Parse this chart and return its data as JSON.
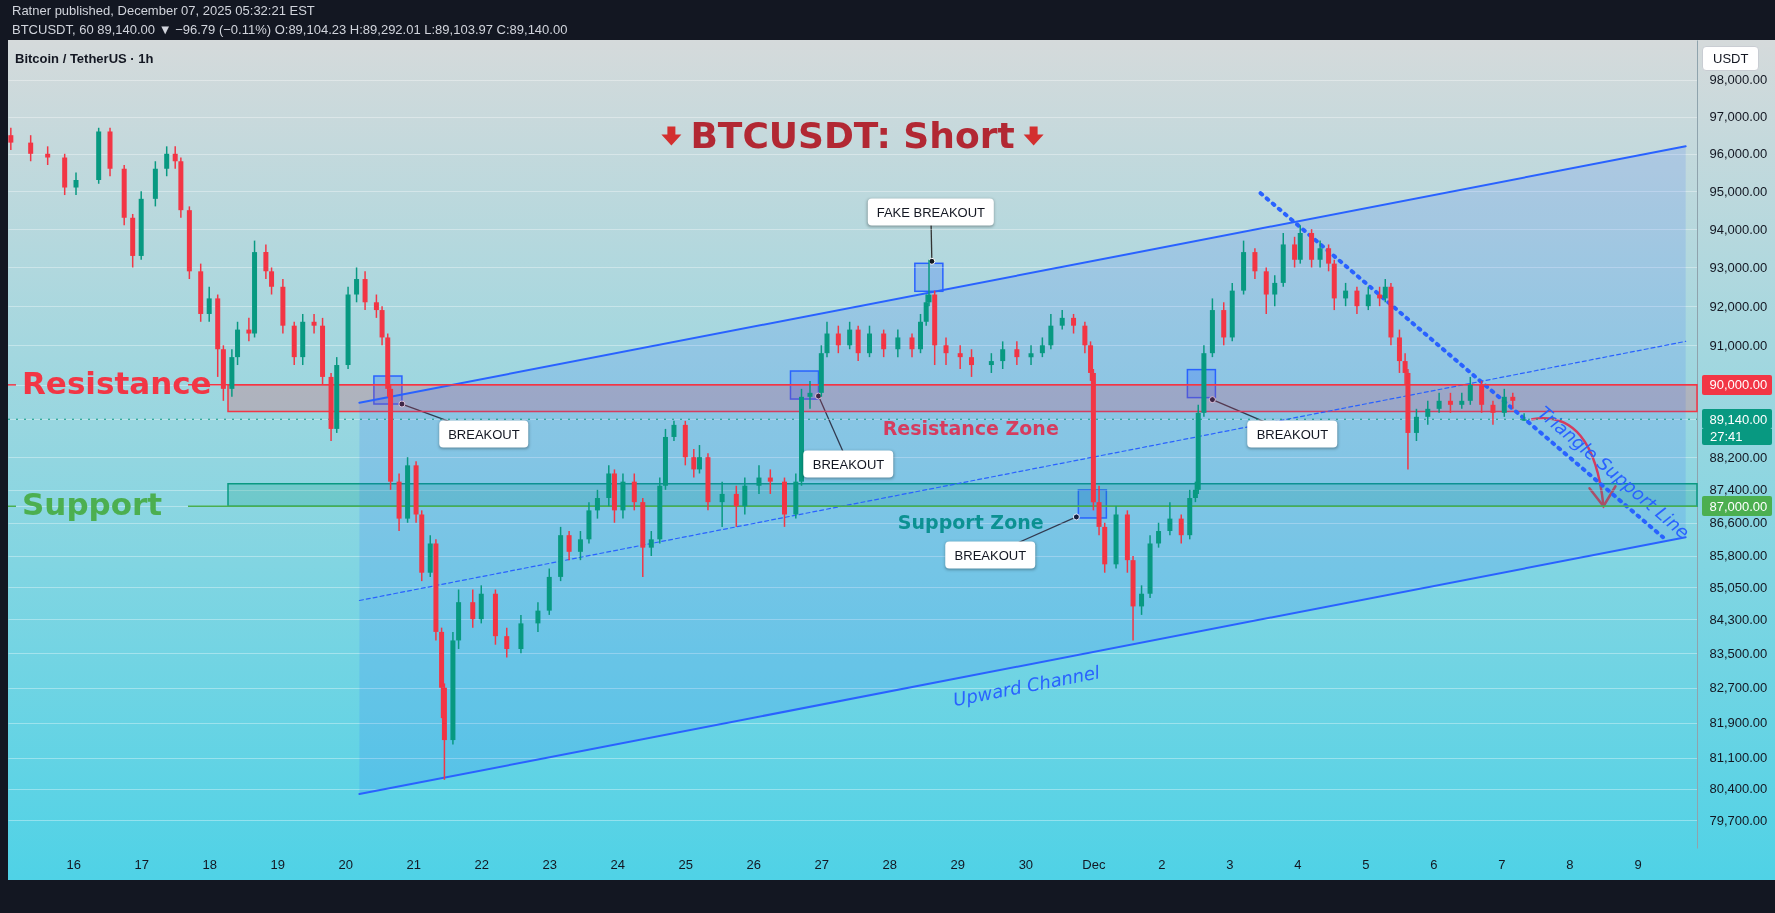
{
  "chart_data": {
    "type": "candlestick",
    "title": "BTCUSDT: Short",
    "subtitle": "Bitcoin / TetherUS · 1h",
    "ylabel": "USDT",
    "annotations": [
      "Ratner published, December 07, 2025 05:32:21 EST",
      "BTCUSDT, 60 89,140.00 ▼ −96.79 (−0.11%) O:89,104.23 H:89,292.01 L:89,103.97 C:89,140.00",
      {
        "text": "BREAKOUT",
        "x": "2025-11-20T20:00",
        "y": 89520
      },
      {
        "text": "BREAKOUT",
        "x": "2025-11-26T23:00",
        "y": 89720
      },
      {
        "text": "FAKE BREAKOUT",
        "x": "2025-11-28T15:00",
        "y": 93160
      },
      {
        "text": "BREAKOUT",
        "x": "2025-11-30T18:00",
        "y": 86740
      },
      {
        "text": "BREAKOUT",
        "x": "2025-12-02T18:00",
        "y": 89630
      },
      {
        "text": "27:41",
        "x": "2025-12-09T21:00",
        "y": 89140
      }
    ],
    "xlim": [
      "2025-11-15T01:00",
      "2025-12-09T21:00"
    ],
    "xticks": [
      {
        "value": "2025-11-16",
        "label": "16"
      },
      {
        "value": "2025-11-17",
        "label": "17"
      },
      {
        "value": "2025-11-18",
        "label": "18"
      },
      {
        "value": "2025-11-19",
        "label": "19"
      },
      {
        "value": "2025-11-20",
        "label": "20"
      },
      {
        "value": "2025-11-21",
        "label": "21"
      },
      {
        "value": "2025-11-22",
        "label": "22"
      },
      {
        "value": "2025-11-23",
        "label": "23"
      },
      {
        "value": "2025-11-24",
        "label": "24"
      },
      {
        "value": "2025-11-25",
        "label": "25"
      },
      {
        "value": "2025-11-26",
        "label": "26"
      },
      {
        "value": "2025-11-27",
        "label": "27"
      },
      {
        "value": "2025-11-28",
        "label": "28"
      },
      {
        "value": "2025-11-29",
        "label": "29"
      },
      {
        "value": "2025-11-30",
        "label": "30"
      },
      {
        "value": "2025-12-01",
        "label": "Dec"
      },
      {
        "value": "2025-12-02",
        "label": "2"
      },
      {
        "value": "2025-12-03",
        "label": "3"
      },
      {
        "value": "2025-12-04",
        "label": "4"
      },
      {
        "value": "2025-12-05",
        "label": "5"
      },
      {
        "value": "2025-12-06",
        "label": "6"
      },
      {
        "value": "2025-12-07",
        "label": "7"
      },
      {
        "value": "2025-12-08",
        "label": "8"
      },
      {
        "value": "2025-12-09",
        "label": "9"
      }
    ],
    "ylim": [
      79080,
      99100
    ],
    "log": true,
    "yticks": [
      {
        "value": 98000,
        "label": "98,000.00"
      },
      {
        "value": 97000,
        "label": "97,000.00"
      },
      {
        "value": 96000,
        "label": "96,000.00"
      },
      {
        "value": 95000,
        "label": "95,000.00"
      },
      {
        "value": 94000,
        "label": "94,000.00"
      },
      {
        "value": 93000,
        "label": "93,000.00"
      },
      {
        "value": 92000,
        "label": "92,000.00"
      },
      {
        "value": 91000,
        "label": "91,000.00"
      },
      {
        "value": 90000,
        "label": "90,000.00"
      },
      {
        "value": 89140,
        "label": "89,140.00"
      },
      {
        "value": 88200,
        "label": "88,200.00"
      },
      {
        "value": 87400,
        "label": "87,400.00"
      },
      {
        "value": 87000,
        "label": "87,000.00"
      },
      {
        "value": 86600,
        "label": "86,600.00"
      },
      {
        "value": 85800,
        "label": "85,800.00"
      },
      {
        "value": 85050,
        "label": "85,050.00"
      },
      {
        "value": 84300,
        "label": "84,300.00"
      },
      {
        "value": 83500,
        "label": "83,500.00"
      },
      {
        "value": 82700,
        "label": "82,700.00"
      },
      {
        "value": 81900,
        "label": "81,900.00"
      },
      {
        "value": 81100,
        "label": "81,100.00"
      },
      {
        "value": 80400,
        "label": "80,400.00"
      },
      {
        "value": 79700,
        "label": "79,700.00"
      }
    ],
    "grid": "y",
    "ref_lines": [
      {
        "axis": "y",
        "value": 90000,
        "label": "Resistance",
        "color": "#f23645"
      },
      {
        "axis": "y",
        "value": 87000,
        "label": "Support",
        "color": "#4caf50"
      },
      {
        "axis": "y",
        "value": 89140,
        "color": "#089981",
        "line_style": "dotted"
      }
    ],
    "bands": [
      {
        "axis": "y",
        "from": 89330,
        "to": 90000,
        "label": "Resistance Zone",
        "color": "#f23645"
      },
      {
        "axis": "y",
        "from": 87000,
        "to": 87550,
        "label": "Support Zone",
        "color": "#089981"
      }
    ],
    "series": [
      {
        "type": "line",
        "x": [
          "2025-11-20T05:00",
          "2025-12-09T17:00"
        ],
        "values": [
          84740,
          91100
        ],
        "lower": [
          80280,
          86250
        ],
        "upper": [
          89550,
          96200
        ],
        "color": "#2962ff",
        "line_style": "dashed"
      },
      {
        "type": "line",
        "name": "Upward Channel",
        "x": [
          "2025-11-20T05:00",
          "2025-12-09T17:00"
        ],
        "values": [
          80280,
          86250
        ],
        "color": "#2962ff"
      },
      {
        "type": "line",
        "x": [
          "2025-11-20T05:00",
          "2025-12-09T17:00"
        ],
        "values": [
          89550,
          96200
        ],
        "color": "#2962ff"
      },
      {
        "type": "line",
        "name": "Triangle Support Line",
        "x": [
          "2025-12-03T11:00",
          "2025-12-09T09:00"
        ],
        "values": [
          94950,
          86250
        ],
        "color": "#2962ff",
        "line_style": "dotted"
      },
      {
        "type": "candlestick",
        "x": [
          "2025-11-15T02:00",
          "2025-11-15T09:00",
          "2025-11-15T15:00",
          "2025-11-15T21:00",
          "2025-11-16T01:00",
          "2025-11-16T09:00",
          "2025-11-16T13:00",
          "2025-11-16T18:00",
          "2025-11-16T21:00",
          "2025-11-17T00:00",
          "2025-11-17T05:00",
          "2025-11-17T09:00",
          "2025-11-17T12:00",
          "2025-11-17T14:00",
          "2025-11-17T17:00",
          "2025-11-17T21:00",
          "2025-11-18T00:00",
          "2025-11-18T03:00",
          "2025-11-18T05:00",
          "2025-11-18T08:00",
          "2025-11-18T10:00",
          "2025-11-18T14:00",
          "2025-11-18T16:00",
          "2025-11-18T20:00",
          "2025-11-18T22:00",
          "2025-11-19T02:00",
          "2025-11-19T06:00",
          "2025-11-19T09:00",
          "2025-11-19T13:00",
          "2025-11-19T16:00",
          "2025-11-19T19:00",
          "2025-11-19T21:00",
          "2025-11-20T01:00",
          "2025-11-20T04:00",
          "2025-11-20T07:00",
          "2025-11-20T11:00",
          "2025-11-20T13:00",
          "2025-11-20T15:00",
          "2025-11-20T16:00",
          "2025-11-20T19:00",
          "2025-11-20T22:00",
          "2025-11-21T01:00",
          "2025-11-21T03:00",
          "2025-11-21T06:00",
          "2025-11-21T08:00",
          "2025-11-21T10:00",
          "2025-11-21T11:00",
          "2025-11-21T14:00",
          "2025-11-21T16:00",
          "2025-11-21T21:00",
          "2025-11-22T00:00",
          "2025-11-22T05:00",
          "2025-11-22T09:00",
          "2025-11-22T14:00",
          "2025-11-22T20:00",
          "2025-11-23T00:00",
          "2025-11-23T04:00",
          "2025-11-23T07:00",
          "2025-11-23T11:00",
          "2025-11-23T14:00",
          "2025-11-23T17:00",
          "2025-11-23T21:00",
          "2025-11-23T23:00",
          "2025-11-24T02:00",
          "2025-11-24T06:00",
          "2025-11-24T09:00",
          "2025-11-24T12:00",
          "2025-11-24T15:00",
          "2025-11-24T17:00",
          "2025-11-24T20:00",
          "2025-11-25T00:00",
          "2025-11-25T03:00",
          "2025-11-25T05:00",
          "2025-11-25T08:00",
          "2025-11-25T13:00",
          "2025-11-25T18:00",
          "2025-11-25T21:00",
          "2025-11-26T02:00",
          "2025-11-26T06:00",
          "2025-11-26T11:00",
          "2025-11-26T15:00",
          "2025-11-26T17:00",
          "2025-11-26T20:00",
          "2025-11-27T00:00",
          "2025-11-27T02:00",
          "2025-11-27T06:00",
          "2025-11-27T10:00",
          "2025-11-27T13:00",
          "2025-11-27T17:00",
          "2025-11-27T22:00",
          "2025-11-28T03:00",
          "2025-11-28T08:00",
          "2025-11-28T11:00",
          "2025-11-28T13:00",
          "2025-11-28T14:00",
          "2025-11-28T16:00",
          "2025-11-28T20:00",
          "2025-11-29T01:00",
          "2025-11-29T05:00",
          "2025-11-29T12:00",
          "2025-11-29T16:00",
          "2025-11-29T21:00",
          "2025-11-30T02:00",
          "2025-11-30T06:00",
          "2025-11-30T09:00",
          "2025-11-30T13:00",
          "2025-11-30T17:00",
          "2025-11-30T21:00",
          "2025-11-30T23:00",
          "2025-12-01T00:00",
          "2025-12-01T02:00",
          "2025-12-01T04:00",
          "2025-12-01T08:00",
          "2025-12-01T12:00",
          "2025-12-01T14:00",
          "2025-12-01T17:00",
          "2025-12-01T20:00",
          "2025-12-01T23:00",
          "2025-12-02T03:00",
          "2025-12-02T07:00",
          "2025-12-02T10:00",
          "2025-12-02T12:00",
          "2025-12-02T13:00",
          "2025-12-02T15:00",
          "2025-12-02T18:00",
          "2025-12-02T22:00",
          "2025-12-03T01:00",
          "2025-12-03T05:00",
          "2025-12-03T09:00",
          "2025-12-03T13:00",
          "2025-12-03T16:00",
          "2025-12-03T19:00",
          "2025-12-03T23:00",
          "2025-12-04T01:00",
          "2025-12-04T05:00",
          "2025-12-04T08:00",
          "2025-12-04T11:00",
          "2025-12-04T13:00",
          "2025-12-04T17:00",
          "2025-12-04T21:00",
          "2025-12-05T01:00",
          "2025-12-05T05:00",
          "2025-12-05T07:00",
          "2025-12-05T09:00",
          "2025-12-05T12:00",
          "2025-12-05T14:00",
          "2025-12-05T15:00",
          "2025-12-05T18:00",
          "2025-12-05T22:00",
          "2025-12-06T02:00",
          "2025-12-06T06:00",
          "2025-12-06T10:00",
          "2025-12-06T13:00",
          "2025-12-06T17:00",
          "2025-12-06T21:00",
          "2025-12-07T01:00",
          "2025-12-07T04:00",
          "2025-12-07T08:00"
        ],
        "ohlc": [
          [
            96500,
            96700,
            96100,
            96300
          ],
          [
            96300,
            96500,
            95800,
            96000
          ],
          [
            96000,
            96200,
            95700,
            95900
          ],
          [
            95900,
            96000,
            94900,
            95100
          ],
          [
            95100,
            95500,
            94900,
            95300
          ],
          [
            95300,
            96700,
            95200,
            96600
          ],
          [
            96600,
            96700,
            95400,
            95600
          ],
          [
            95600,
            95700,
            94100,
            94300
          ],
          [
            94300,
            94400,
            93000,
            93300
          ],
          [
            93300,
            95000,
            93200,
            94800
          ],
          [
            94800,
            95800,
            94600,
            95600
          ],
          [
            95600,
            96200,
            95400,
            96000
          ],
          [
            96000,
            96200,
            95600,
            95800
          ],
          [
            95800,
            95900,
            94300,
            94500
          ],
          [
            94500,
            94600,
            92700,
            92900
          ],
          [
            92900,
            93100,
            91600,
            91800
          ],
          [
            91800,
            92500,
            91600,
            92200
          ],
          [
            92200,
            92300,
            90200,
            90900
          ],
          [
            90900,
            91000,
            89600,
            89900
          ],
          [
            89900,
            90900,
            89700,
            90700
          ],
          [
            90700,
            91600,
            90500,
            91400
          ],
          [
            91400,
            91700,
            91100,
            91300
          ],
          [
            91300,
            93700,
            91200,
            93400
          ],
          [
            93400,
            93600,
            92700,
            92900
          ],
          [
            92900,
            93000,
            92300,
            92500
          ],
          [
            92500,
            92700,
            91300,
            91500
          ],
          [
            91500,
            91600,
            90500,
            90700
          ],
          [
            90700,
            91800,
            90500,
            91600
          ],
          [
            91600,
            91800,
            91300,
            91500
          ],
          [
            91500,
            91700,
            90000,
            90200
          ],
          [
            90200,
            90300,
            88600,
            88900
          ],
          [
            88900,
            90700,
            88800,
            90500
          ],
          [
            90500,
            92500,
            90400,
            92300
          ],
          [
            92300,
            93000,
            92100,
            92700
          ],
          [
            92700,
            92900,
            91900,
            92100
          ],
          [
            92100,
            92300,
            91700,
            91900
          ],
          [
            91900,
            92000,
            91000,
            91200
          ],
          [
            91200,
            91300,
            89700,
            89900
          ],
          [
            89900,
            90000,
            87400,
            87600
          ],
          [
            87600,
            87800,
            86400,
            86700
          ],
          [
            86700,
            88200,
            86600,
            88000
          ],
          [
            88000,
            88100,
            86600,
            86800
          ],
          [
            86800,
            86900,
            85200,
            85400
          ],
          [
            85400,
            86300,
            85300,
            86100
          ],
          [
            86100,
            86200,
            83800,
            84000
          ],
          [
            84000,
            84100,
            82000,
            82700
          ],
          [
            82700,
            82800,
            80600,
            81500
          ],
          [
            81500,
            84000,
            81400,
            83800
          ],
          [
            83800,
            85000,
            83600,
            84700
          ],
          [
            84700,
            85000,
            84100,
            84300
          ],
          [
            84300,
            85100,
            84200,
            84900
          ],
          [
            84900,
            85000,
            83700,
            83900
          ],
          [
            83900,
            84100,
            83400,
            83600
          ],
          [
            83600,
            84400,
            83500,
            84200
          ],
          [
            84200,
            84700,
            84000,
            84500
          ],
          [
            84500,
            85500,
            84400,
            85300
          ],
          [
            85300,
            86500,
            85200,
            86300
          ],
          [
            86300,
            86400,
            85700,
            85900
          ],
          [
            85900,
            86400,
            85700,
            86200
          ],
          [
            86200,
            87100,
            86100,
            86900
          ],
          [
            86900,
            87400,
            86700,
            87200
          ],
          [
            87200,
            88000,
            87000,
            87800
          ],
          [
            87800,
            87900,
            86600,
            86900
          ],
          [
            86900,
            87800,
            86700,
            87600
          ],
          [
            87600,
            87800,
            86900,
            87100
          ],
          [
            87100,
            87200,
            85300,
            86000
          ],
          [
            86000,
            86400,
            85800,
            86200
          ],
          [
            86200,
            87700,
            86100,
            87500
          ],
          [
            87500,
            88900,
            87400,
            88700
          ],
          [
            88700,
            89100,
            88600,
            89000
          ],
          [
            89000,
            89100,
            88000,
            88200
          ],
          [
            88200,
            88400,
            87700,
            87900
          ],
          [
            87900,
            88500,
            87800,
            88200
          ],
          [
            88200,
            88300,
            86900,
            87100
          ],
          [
            87100,
            87600,
            86500,
            87300
          ],
          [
            87300,
            87500,
            86500,
            87000
          ],
          [
            87000,
            87700,
            86800,
            87500
          ],
          [
            87500,
            88000,
            87300,
            87700
          ],
          [
            87700,
            87900,
            87300,
            87600
          ],
          [
            87600,
            87700,
            86500,
            86800
          ],
          [
            86800,
            87800,
            86700,
            87600
          ],
          [
            87600,
            89900,
            87500,
            89700
          ],
          [
            89700,
            90100,
            89400,
            89800
          ],
          [
            89800,
            91000,
            89700,
            90800
          ],
          [
            90800,
            91600,
            90700,
            91300
          ],
          [
            91300,
            91500,
            90800,
            91000
          ],
          [
            91000,
            91600,
            90900,
            91400
          ],
          [
            91400,
            91500,
            90600,
            90800
          ],
          [
            90800,
            91500,
            90700,
            91300
          ],
          [
            91300,
            91400,
            90700,
            90900
          ],
          [
            90900,
            91400,
            90700,
            91200
          ],
          [
            91200,
            91300,
            90700,
            90900
          ],
          [
            90900,
            91800,
            90800,
            91600
          ],
          [
            91600,
            92300,
            91500,
            92100
          ],
          [
            92100,
            93200,
            92000,
            92300
          ],
          [
            92300,
            92400,
            90500,
            91000
          ],
          [
            91000,
            91200,
            90500,
            90800
          ],
          [
            90800,
            91000,
            90400,
            90700
          ],
          [
            90700,
            90900,
            90200,
            90500
          ],
          [
            90500,
            90800,
            90300,
            90600
          ],
          [
            90600,
            91100,
            90400,
            90900
          ],
          [
            90900,
            91100,
            90500,
            90700
          ],
          [
            90700,
            91000,
            90500,
            90800
          ],
          [
            90800,
            91200,
            90700,
            91000
          ],
          [
            91000,
            91800,
            90900,
            91500
          ],
          [
            91500,
            91900,
            91400,
            91700
          ],
          [
            91700,
            91800,
            91300,
            91500
          ],
          [
            91500,
            91600,
            90800,
            91000
          ],
          [
            91000,
            91100,
            90100,
            90300
          ],
          [
            90300,
            90400,
            86900,
            87100
          ],
          [
            87100,
            87500,
            86300,
            86500
          ],
          [
            86500,
            86600,
            85400,
            85600
          ],
          [
            85600,
            87000,
            85500,
            86800
          ],
          [
            86800,
            86900,
            85400,
            85700
          ],
          [
            85700,
            85800,
            83800,
            84600
          ],
          [
            84600,
            85100,
            84400,
            84900
          ],
          [
            84900,
            86300,
            84800,
            86100
          ],
          [
            86100,
            86600,
            86000,
            86400
          ],
          [
            86400,
            87100,
            86300,
            86700
          ],
          [
            86700,
            86800,
            86100,
            86300
          ],
          [
            86300,
            87400,
            86200,
            87200
          ],
          [
            87200,
            87600,
            87100,
            87400
          ],
          [
            87400,
            89500,
            87300,
            89300
          ],
          [
            89300,
            91000,
            89200,
            90800
          ],
          [
            90800,
            92200,
            90700,
            91900
          ],
          [
            91900,
            92100,
            91000,
            91200
          ],
          [
            91200,
            92600,
            91100,
            92400
          ],
          [
            92400,
            93700,
            92300,
            93400
          ],
          [
            93400,
            93500,
            92700,
            92900
          ],
          [
            92900,
            93000,
            91800,
            92300
          ],
          [
            92300,
            92800,
            92000,
            92600
          ],
          [
            92600,
            93900,
            92500,
            93600
          ],
          [
            93600,
            93800,
            93000,
            93200
          ],
          [
            93200,
            94100,
            93100,
            93900
          ],
          [
            93900,
            94000,
            93000,
            93200
          ],
          [
            93200,
            93700,
            93000,
            93500
          ],
          [
            93500,
            93600,
            92900,
            93100
          ],
          [
            93100,
            93200,
            91900,
            92200
          ],
          [
            92200,
            92600,
            92000,
            92400
          ],
          [
            92400,
            92500,
            91800,
            92000
          ],
          [
            92000,
            92500,
            91900,
            92300
          ],
          [
            92300,
            92500,
            92000,
            92200
          ],
          [
            92200,
            92700,
            92100,
            92500
          ],
          [
            92500,
            92600,
            91000,
            91200
          ],
          [
            91200,
            91400,
            90300,
            90600
          ],
          [
            90600,
            90800,
            90000,
            90300
          ],
          [
            90300,
            90400,
            87900,
            88800
          ],
          [
            88800,
            89400,
            88600,
            89200
          ],
          [
            89200,
            89600,
            89000,
            89400
          ],
          [
            89400,
            89800,
            89300,
            89600
          ],
          [
            89600,
            89800,
            89300,
            89500
          ],
          [
            89500,
            89800,
            89400,
            89600
          ],
          [
            89600,
            90200,
            89500,
            90000
          ],
          [
            90000,
            90100,
            89300,
            89500
          ],
          [
            89500,
            89600,
            89000,
            89300
          ],
          [
            89300,
            89900,
            89200,
            89700
          ],
          [
            89700,
            89800,
            89400,
            89600
          ],
          [
            89104.23,
            89292.01,
            89103.97,
            89140
          ]
        ],
        "colors": [
          "#f23645",
          "#f23645",
          "#f23645",
          "#f23645",
          "#089981",
          "#089981",
          "#f23645",
          "#f23645",
          "#f23645",
          "#089981",
          "#089981",
          "#089981",
          "#f23645",
          "#f23645",
          "#f23645",
          "#f23645",
          "#089981",
          "#f23645",
          "#f23645",
          "#089981",
          "#089981",
          "#f23645",
          "#089981",
          "#f23645",
          "#f23645",
          "#f23645",
          "#f23645",
          "#089981",
          "#f23645",
          "#f23645",
          "#f23645",
          "#089981",
          "#089981",
          "#089981",
          "#f23645",
          "#f23645",
          "#f23645",
          "#f23645",
          "#f23645",
          "#f23645",
          "#089981",
          "#f23645",
          "#f23645",
          "#089981",
          "#f23645",
          "#f23645",
          "#f23645",
          "#089981",
          "#089981",
          "#f23645",
          "#089981",
          "#f23645",
          "#f23645",
          "#089981",
          "#089981",
          "#089981",
          "#089981",
          "#f23645",
          "#089981",
          "#089981",
          "#089981",
          "#089981",
          "#f23645",
          "#089981",
          "#f23645",
          "#f23645",
          "#089981",
          "#089981",
          "#089981",
          "#089981",
          "#f23645",
          "#f23645",
          "#089981",
          "#f23645",
          "#089981",
          "#f23645",
          "#089981",
          "#089981",
          "#f23645",
          "#f23645",
          "#089981",
          "#089981",
          "#089981",
          "#089981",
          "#089981",
          "#f23645",
          "#089981",
          "#f23645",
          "#089981",
          "#f23645",
          "#089981",
          "#f23645",
          "#089981",
          "#089981",
          "#089981",
          "#f23645",
          "#f23645",
          "#f23645",
          "#f23645",
          "#089981",
          "#089981",
          "#f23645",
          "#089981",
          "#089981",
          "#089981",
          "#089981",
          "#f23645",
          "#f23645",
          "#f23645",
          "#f23645",
          "#f23645",
          "#f23645",
          "#089981",
          "#f23645",
          "#f23645",
          "#089981",
          "#089981",
          "#089981",
          "#089981",
          "#f23645",
          "#089981",
          "#089981",
          "#089981",
          "#089981",
          "#089981",
          "#f23645",
          "#089981",
          "#089981",
          "#f23645",
          "#f23645",
          "#089981",
          "#089981",
          "#f23645",
          "#089981",
          "#f23645",
          "#089981",
          "#f23645",
          "#f23645",
          "#089981",
          "#f23645",
          "#089981",
          "#f23645",
          "#089981",
          "#f23645",
          "#f23645",
          "#f23645",
          "#f23645",
          "#089981",
          "#089981",
          "#089981",
          "#f23645",
          "#089981",
          "#089981",
          "#f23645",
          "#f23645",
          "#089981",
          "#f23645",
          "#089981"
        ]
      }
    ]
  }
}
